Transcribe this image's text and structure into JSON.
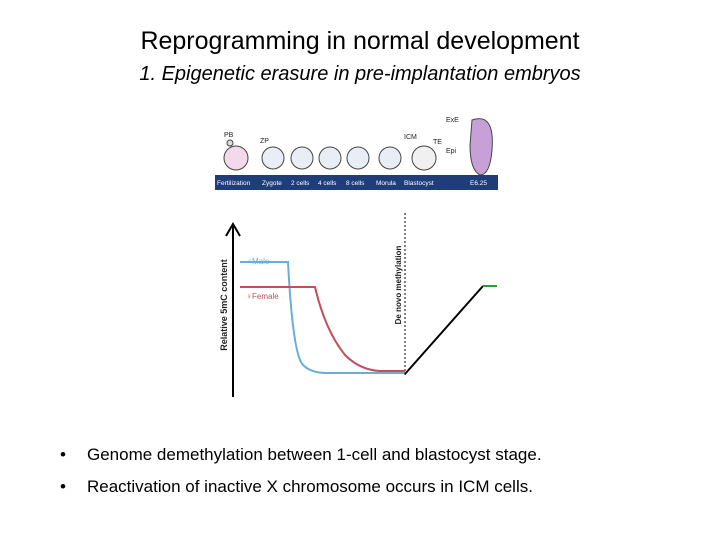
{
  "header": {
    "title": "Reprogramming in normal development",
    "subtitle": "1. Epigenetic erasure in pre-implantation embryos"
  },
  "figure": {
    "embryo_labels": [
      "PB",
      "ZP",
      "ICM",
      "TE",
      "ExE",
      "Epi"
    ],
    "stages": [
      "Fertilization",
      "Zygote",
      "2 cells",
      "4 cells",
      "8 cells",
      "Morula",
      "Blastocyst",
      "E6.25"
    ],
    "y_axis_label": "Relative 5mC content",
    "annotation": "De novo methylation",
    "legend": [
      "♂Male",
      "♀Female"
    ]
  },
  "bullets": [
    "Genome demethylation between 1-cell and blastocyst stage.",
    "Reactivation of inactive X chromosome occurs in ICM cells."
  ]
}
